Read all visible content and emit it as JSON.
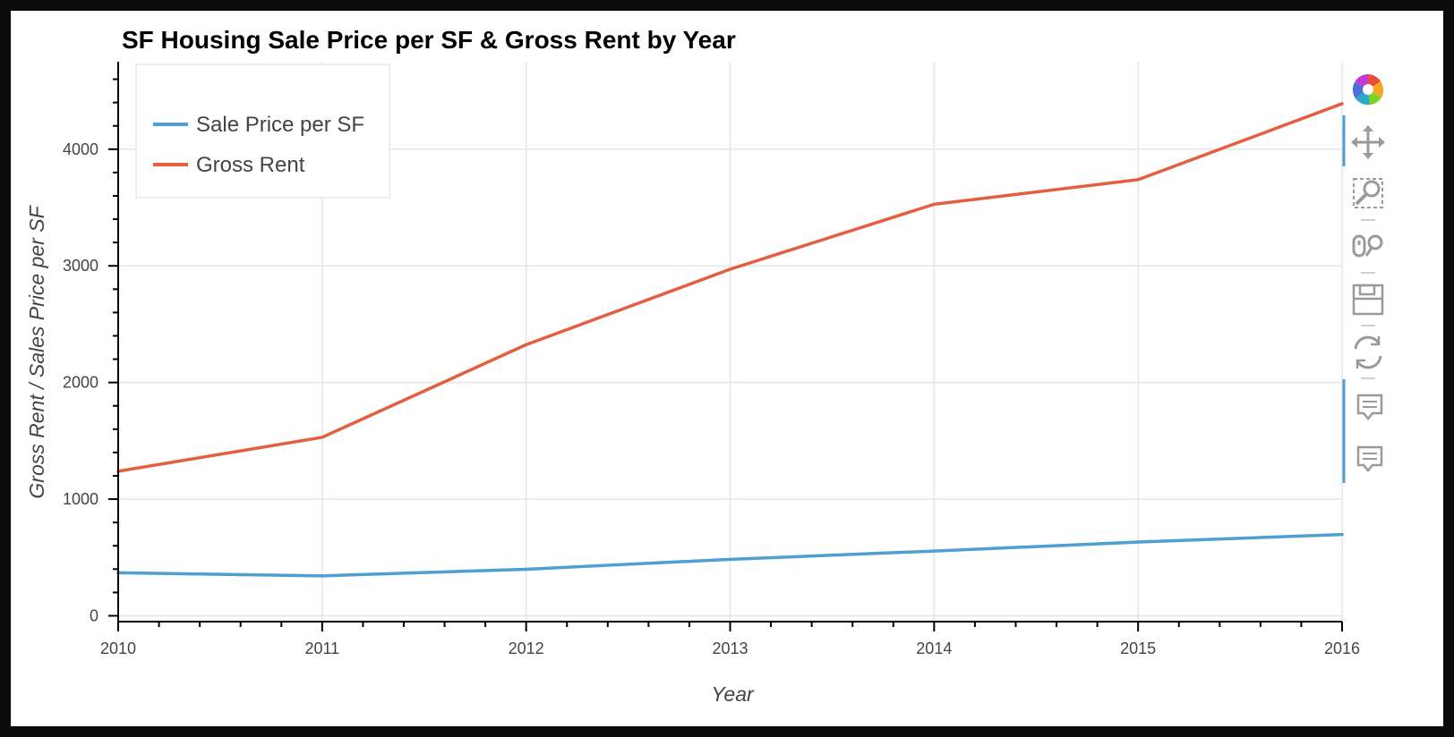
{
  "chart_data": {
    "type": "line",
    "title": "SF Housing Sale Price per SF & Gross Rent by Year",
    "xlabel": "Year",
    "ylabel": "Gross Rent / Sales Price per SF",
    "x": [
      2010,
      2011,
      2012,
      2013,
      2014,
      2015,
      2016
    ],
    "xlim": [
      2010,
      2016
    ],
    "ylim": [
      -50,
      4750
    ],
    "x_ticks": [
      "2010",
      "2011",
      "2012",
      "2013",
      "2014",
      "2015",
      "2016"
    ],
    "y_ticks": [
      "0",
      "1000",
      "2000",
      "3000",
      "4000"
    ],
    "grid": true,
    "legend_position": "top-left",
    "series": [
      {
        "name": "Sale Price per SF",
        "color": "#4e9fd3",
        "values": [
          369,
          342,
          399,
          484,
          555,
          632,
          697
        ]
      },
      {
        "name": "Gross Rent",
        "color": "#e35f40",
        "values": [
          1239,
          1530,
          2324,
          2971,
          3528,
          3739,
          4390
        ]
      }
    ]
  },
  "toolbar": {
    "tools": [
      "bokeh-logo-icon",
      "pan-icon",
      "box-zoom-icon",
      "wheel-zoom-icon",
      "save-icon",
      "reset-icon",
      "hover-icon",
      "hover-icon"
    ]
  }
}
